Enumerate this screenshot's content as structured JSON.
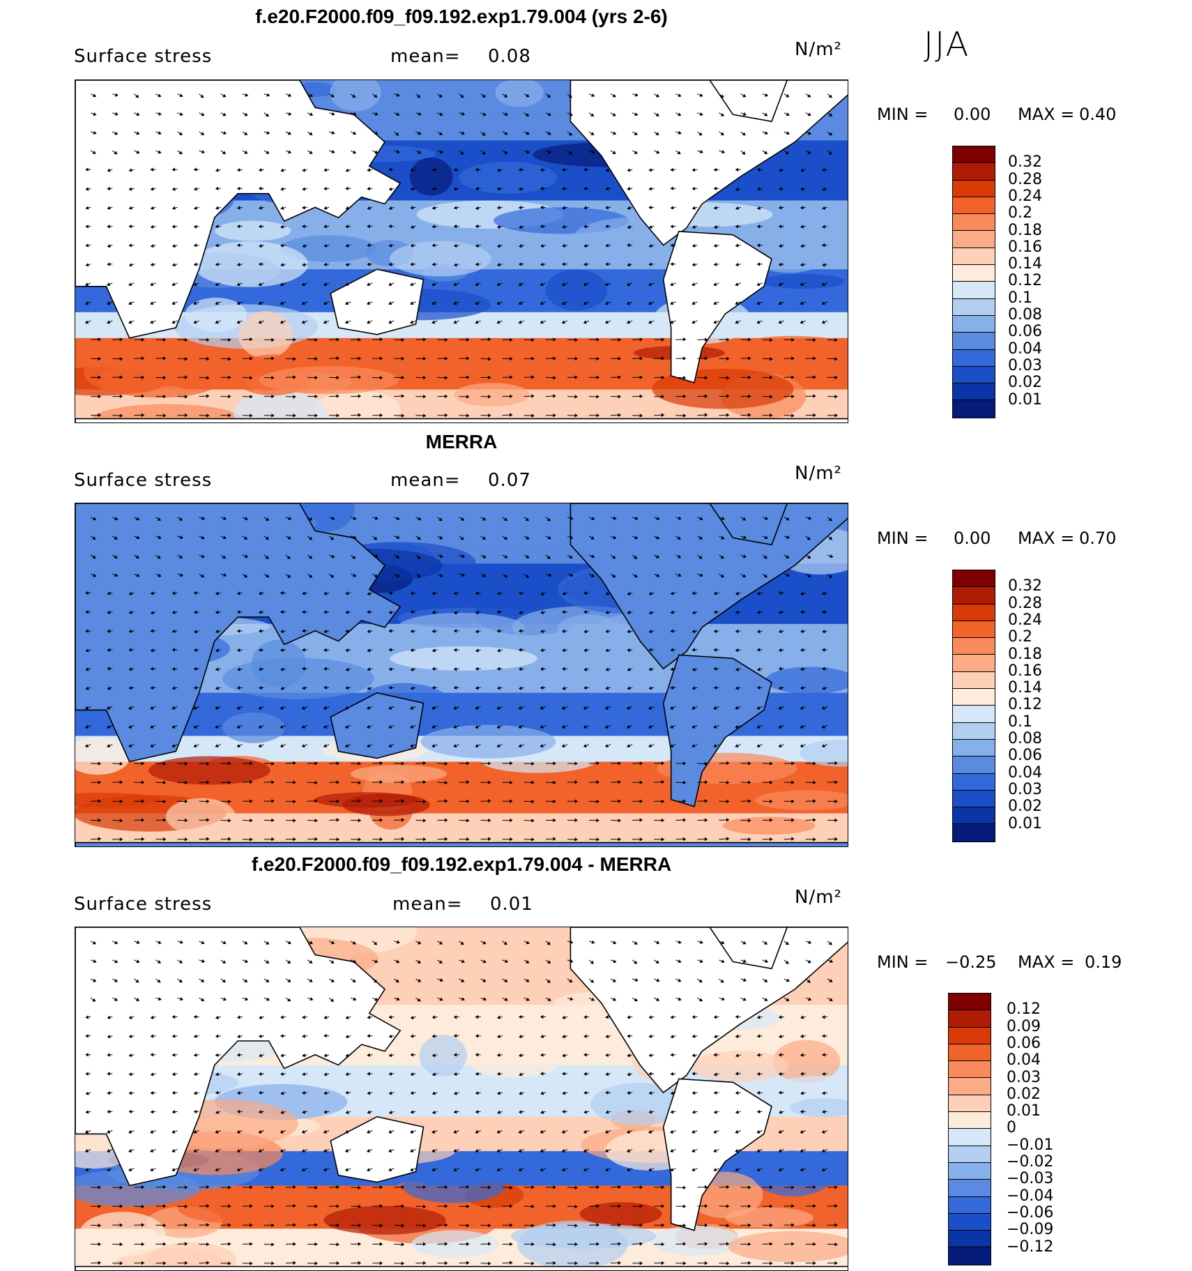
{
  "season": "JJA",
  "panels": [
    {
      "title": "f.e20.F2000.f09_f09.192.exp1.79.004 (yrs 2-6)",
      "field": "Surface stress",
      "mean_label": "mean=",
      "mean_value": "0.08",
      "units": "N/m²",
      "min_label": "MIN =",
      "min_value": "0.00",
      "max_label": "MAX =",
      "max_value": "0.40",
      "scale": "absolute",
      "colorbar_ticks": [
        "0.32",
        "0.28",
        "0.24",
        "0.2",
        "0.18",
        "0.16",
        "0.14",
        "0.12",
        "0.1",
        "0.08",
        "0.06",
        "0.04",
        "0.03",
        "0.02",
        "0.01"
      ]
    },
    {
      "title": "MERRA",
      "field": "Surface stress",
      "mean_label": "mean=",
      "mean_value": "0.07",
      "units": "N/m²",
      "min_label": "MIN =",
      "min_value": "0.00",
      "max_label": "MAX =",
      "max_value": "0.70",
      "scale": "absolute",
      "colorbar_ticks": [
        "0.32",
        "0.28",
        "0.24",
        "0.2",
        "0.18",
        "0.16",
        "0.14",
        "0.12",
        "0.1",
        "0.08",
        "0.06",
        "0.04",
        "0.03",
        "0.02",
        "0.01"
      ]
    },
    {
      "title": "f.e20.F2000.f09_f09.192.exp1.79.004 - MERRA",
      "field": "Surface stress",
      "mean_label": "mean=",
      "mean_value": "0.01",
      "units": "N/m²",
      "min_label": "MIN =",
      "min_value": "−0.25",
      "max_label": "MAX =",
      "max_value": "0.19",
      "scale": "difference",
      "colorbar_ticks": [
        "0.12",
        "0.09",
        "0.06",
        "0.04",
        "0.03",
        "0.02",
        "0.01",
        "0",
        "−0.01",
        "−0.02",
        "−0.03",
        "−0.04",
        "−0.06",
        "−0.09",
        "−0.12"
      ]
    }
  ],
  "colors": {
    "absolute": [
      "#7f0000",
      "#b01b06",
      "#d93a06",
      "#f2632b",
      "#f98a5b",
      "#fbab86",
      "#fdd0b7",
      "#fdebdb",
      "#d6e8f8",
      "#b2cff2",
      "#87afea",
      "#5a8be0",
      "#3369da",
      "#1b4fc9",
      "#0b34a6",
      "#051b7a"
    ],
    "difference": [
      "#7f0000",
      "#b01b06",
      "#d93a06",
      "#f2632b",
      "#f98a5b",
      "#fbab86",
      "#fdd0b7",
      "#fdebdb",
      "#d6e8f8",
      "#b2cff2",
      "#87afea",
      "#5a8be0",
      "#3369da",
      "#1b4fc9",
      "#0b34a6",
      "#051b7a"
    ],
    "land": "#ffffff",
    "coast": "#000000"
  }
}
